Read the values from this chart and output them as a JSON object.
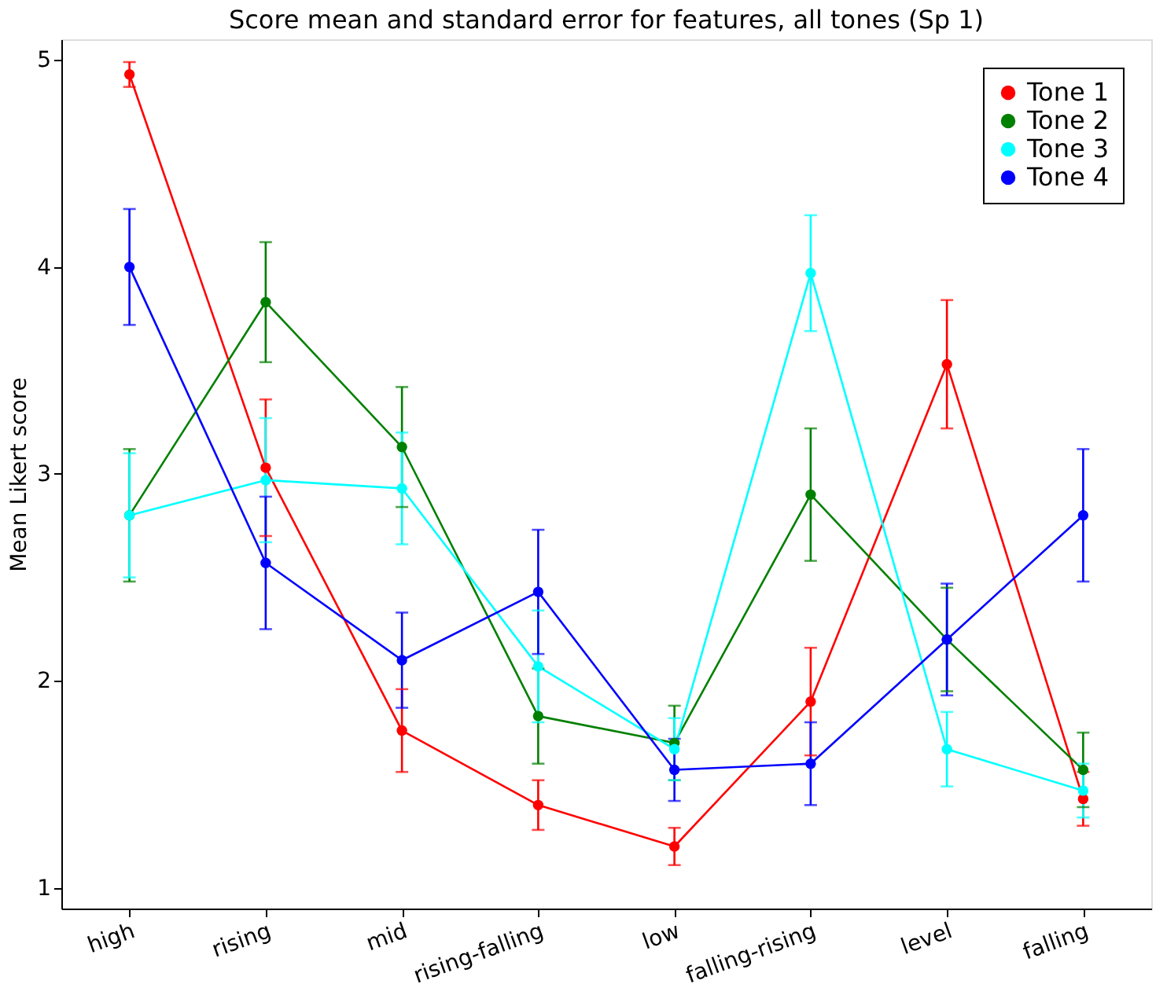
{
  "chart_data": {
    "type": "line",
    "title": "Score mean and standard error for features, all tones (Sp 1)",
    "ylabel": "Mean Likert score",
    "categories": [
      "high",
      "rising",
      "mid",
      "rising-falling",
      "low",
      "falling-rising",
      "level",
      "falling"
    ],
    "series": [
      {
        "name": "Tone 1",
        "color": "#ff0000",
        "values": [
          4.93,
          3.03,
          1.76,
          1.4,
          1.2,
          1.9,
          3.53,
          1.43
        ],
        "errors": [
          0.06,
          0.33,
          0.2,
          0.12,
          0.09,
          0.26,
          0.31,
          0.13
        ]
      },
      {
        "name": "Tone 2",
        "color": "#008000",
        "values": [
          2.8,
          3.83,
          3.13,
          1.83,
          1.7,
          2.9,
          2.2,
          1.57
        ],
        "errors": [
          0.32,
          0.29,
          0.29,
          0.23,
          0.18,
          0.32,
          0.25,
          0.18
        ]
      },
      {
        "name": "Tone 3",
        "color": "#00ffff",
        "values": [
          2.8,
          2.97,
          2.93,
          2.07,
          1.67,
          3.97,
          1.67,
          1.47
        ],
        "errors": [
          0.3,
          0.3,
          0.27,
          0.27,
          0.15,
          0.28,
          0.18,
          0.13
        ]
      },
      {
        "name": "Tone 4",
        "color": "#0000ff",
        "values": [
          4.0,
          2.57,
          2.1,
          2.43,
          1.57,
          1.6,
          2.2,
          2.8
        ],
        "errors": [
          0.28,
          0.32,
          0.23,
          0.3,
          0.15,
          0.2,
          0.27,
          0.32
        ]
      }
    ],
    "ylim": [
      0.9,
      5.1
    ],
    "yticks": [
      1,
      2,
      3,
      4,
      5
    ],
    "grid": false,
    "legend": "top right",
    "marker": "circle",
    "line_style": "solid"
  }
}
